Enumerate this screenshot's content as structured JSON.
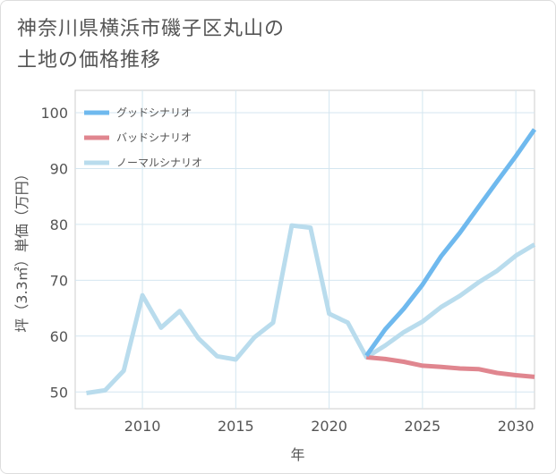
{
  "title_lines": [
    "神奈川県横浜市磯子区丸山の",
    "土地の価格推移"
  ],
  "chart_data": {
    "type": "line",
    "title": "神奈川県横浜市磯子区丸山の土地の価格推移",
    "xlabel": "年",
    "ylabel": "坪（3.3㎡）単価（万円）",
    "xlim": [
      2006.4,
      2031
    ],
    "ylim": [
      47,
      104
    ],
    "xticks": [
      2010,
      2015,
      2020,
      2025,
      2030
    ],
    "yticks": [
      50,
      60,
      70,
      80,
      90,
      100
    ],
    "grid": true,
    "legend_position": "top-left",
    "series": [
      {
        "name": "グッドシナリオ",
        "color": "#6fb9ee",
        "x": [
          2022,
          2023,
          2024,
          2025,
          2026,
          2027,
          2028,
          2029,
          2030,
          2031
        ],
        "values": [
          56.5,
          61.2,
          64.9,
          69.2,
          74.3,
          78.5,
          83.1,
          87.7,
          92.2,
          97.0
        ]
      },
      {
        "name": "バッドシナリオ",
        "color": "#e0868f",
        "x": [
          2022,
          2023,
          2024,
          2025,
          2026,
          2027,
          2028,
          2029,
          2030,
          2031
        ],
        "values": [
          56.2,
          55.9,
          55.4,
          54.7,
          54.5,
          54.2,
          54.1,
          53.4,
          53.0,
          52.7
        ]
      },
      {
        "name": "ノーマルシナリオ",
        "color": "#b9dced",
        "x": [
          2007,
          2008,
          2009,
          2010,
          2011,
          2012,
          2013,
          2014,
          2015,
          2016,
          2017,
          2018,
          2019,
          2020,
          2021,
          2022,
          2023,
          2024,
          2025,
          2026,
          2027,
          2028,
          2029,
          2030,
          2031
        ],
        "values": [
          49.8,
          50.3,
          53.8,
          67.3,
          61.5,
          64.5,
          59.6,
          56.4,
          55.8,
          59.8,
          62.4,
          79.8,
          79.4,
          64.0,
          62.4,
          56.2,
          58.3,
          60.7,
          62.6,
          65.2,
          67.2,
          69.6,
          71.7,
          74.4,
          76.4
        ]
      }
    ]
  }
}
